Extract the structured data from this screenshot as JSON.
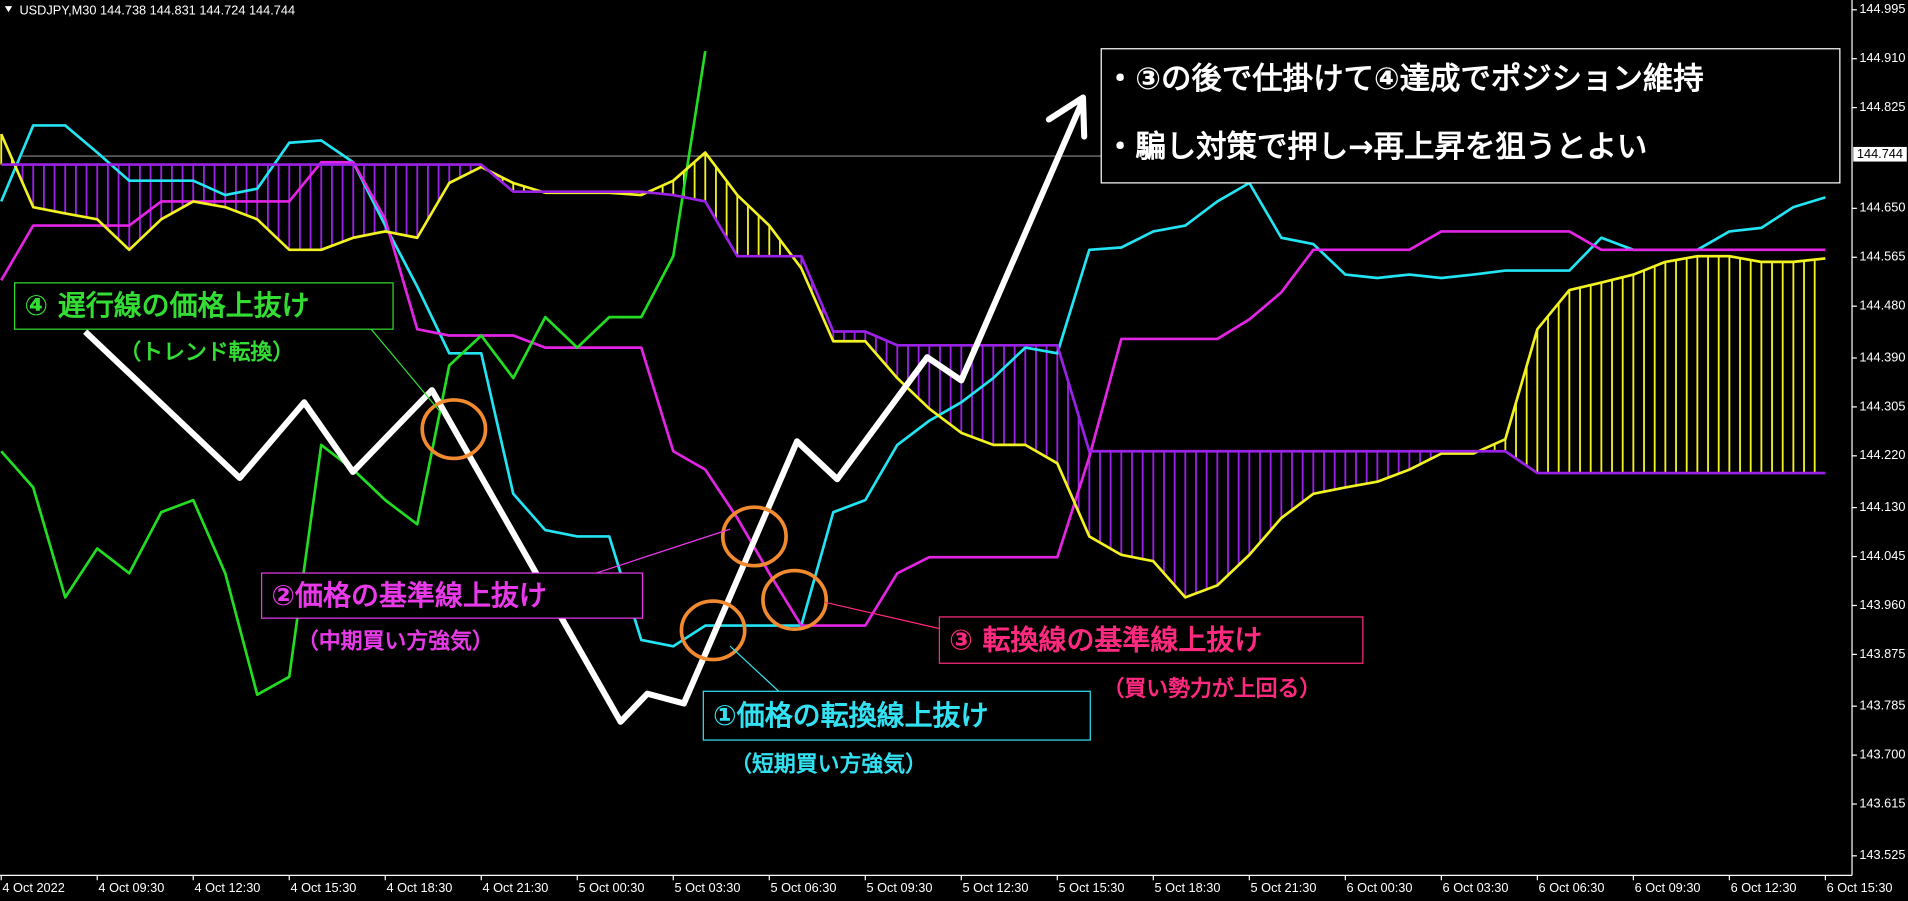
{
  "chart_data": {
    "type": "line",
    "title": "USDJPY,M30  144.738 144.831 144.724 144.744",
    "current_price": {
      "value": 144.744,
      "label": "144.744"
    },
    "categories": [
      "4 Oct 2022",
      null,
      null,
      "4 Oct 09:30",
      null,
      null,
      "4 Oct 12:30",
      null,
      null,
      "4 Oct 15:30",
      null,
      null,
      "4 Oct 18:30",
      null,
      null,
      "4 Oct 21:30",
      null,
      null,
      "5 Oct 00:30",
      null,
      null,
      "5 Oct 03:30",
      null,
      null,
      "5 Oct 06:30",
      null,
      null,
      "5 Oct 09:30",
      null,
      null,
      "5 Oct 12:30",
      null,
      null,
      "5 Oct 15:30",
      null,
      null,
      "5 Oct 18:30",
      null,
      null,
      "5 Oct 21:30",
      null,
      null,
      "6 Oct 00:30",
      null,
      null,
      "6 Oct 03:30",
      null,
      null,
      "6 Oct 06:30",
      null,
      null,
      "6 Oct 09:30",
      null,
      null,
      "6 Oct 12:30",
      null,
      null,
      "6 Oct 15:30"
    ],
    "series": [
      {
        "color": "#22e4f2",
        "values": [
          144.662,
          144.794,
          144.794,
          144.747,
          144.698,
          144.698,
          144.698,
          144.673,
          144.684,
          144.764,
          144.768,
          144.73,
          144.62,
          144.514,
          144.398,
          144.398,
          144.154,
          144.091,
          144.08,
          144.08,
          143.9,
          143.889,
          143.925,
          143.925,
          143.925,
          143.925,
          144.122,
          144.143,
          144.239,
          144.281,
          144.313,
          144.355,
          144.408,
          144.398,
          144.578,
          144.582,
          144.61,
          144.62,
          144.662,
          144.694,
          144.599,
          144.588,
          144.535,
          144.529,
          144.535,
          144.529,
          144.535,
          144.542,
          144.542,
          144.542,
          144.599,
          144.578,
          144.578,
          144.578,
          144.61,
          144.616,
          144.652,
          144.669
        ]
      },
      {
        "color": "#e424e4",
        "values": [
          144.525,
          144.62,
          144.62,
          144.62,
          144.62,
          144.662,
          144.662,
          144.662,
          144.662,
          144.662,
          144.73,
          144.73,
          144.631,
          144.44,
          144.429,
          144.429,
          144.429,
          144.408,
          144.408,
          144.408,
          144.408,
          144.228,
          144.196,
          144.112,
          144.016,
          143.925,
          143.925,
          143.925,
          144.016,
          144.044,
          144.044,
          144.044,
          144.044,
          144.044,
          144.218,
          144.423,
          144.423,
          144.423,
          144.423,
          144.457,
          144.504,
          144.578,
          144.578,
          144.578,
          144.578,
          144.61,
          144.61,
          144.61,
          144.61,
          144.61,
          144.578,
          144.578,
          144.578,
          144.578,
          144.578,
          144.578,
          144.578,
          144.578
        ]
      },
      {
        "color": "#22dd22",
        "values": [
          144.228,
          144.165,
          143.974,
          144.059,
          144.016,
          144.122,
          144.143,
          144.016,
          143.805,
          143.836,
          144.239,
          144.196,
          144.143,
          144.101,
          144.377,
          144.429,
          144.355,
          144.461,
          144.408,
          144.461,
          144.461,
          144.567,
          144.923,
          null,
          null,
          null,
          null,
          null,
          null,
          null,
          null,
          null,
          null,
          null,
          null,
          null,
          null,
          null,
          null,
          null,
          null,
          null,
          null,
          null,
          null,
          null,
          null,
          null,
          null,
          null,
          null,
          null,
          null,
          null,
          null,
          null,
          null,
          null
        ]
      },
      {
        "color": "#f2f222",
        "values": [
          144.779,
          144.652,
          144.641,
          144.631,
          144.578,
          144.631,
          144.662,
          144.652,
          144.631,
          144.578,
          144.578,
          144.599,
          144.61,
          144.599,
          144.694,
          144.722,
          144.694,
          144.677,
          144.677,
          144.677,
          144.673,
          144.698,
          144.747,
          144.673,
          144.62,
          144.546,
          144.419,
          144.419,
          144.355,
          144.302,
          144.26,
          144.239,
          144.239,
          144.207,
          144.08,
          144.048,
          144.037,
          143.974,
          143.995,
          144.048,
          144.112,
          144.154,
          144.165,
          144.175,
          144.196,
          144.224,
          144.224,
          144.249,
          144.44,
          144.508,
          144.521,
          144.535,
          144.557,
          144.567,
          144.567,
          144.557,
          144.557,
          144.563
        ]
      },
      {
        "color": "#9a22e6",
        "values": [
          144.726,
          144.726,
          144.726,
          144.726,
          144.726,
          144.726,
          144.726,
          144.726,
          144.726,
          144.726,
          144.726,
          144.726,
          144.726,
          144.726,
          144.726,
          144.726,
          144.679,
          144.679,
          144.679,
          144.679,
          144.679,
          144.673,
          144.662,
          144.567,
          144.567,
          144.567,
          144.436,
          144.436,
          144.412,
          144.412,
          144.412,
          144.412,
          144.412,
          144.412,
          144.228,
          144.228,
          144.228,
          144.228,
          144.228,
          144.228,
          144.228,
          144.228,
          144.228,
          144.228,
          144.228,
          144.228,
          144.228,
          144.228,
          144.19,
          144.19,
          144.19,
          144.19,
          144.19,
          144.19,
          144.19,
          144.19,
          144.19,
          144.19
        ]
      }
    ],
    "cloud": {
      "upper_color": "#f2f222",
      "lower_color": "#9a22e6"
    },
    "ylim": [
      143.491,
      145.012
    ],
    "yticks": [
      144.995,
      {
        "value": 144.91,
        "label": "144.910"
      },
      144.825,
      {
        "value": 144.65,
        "label": "144.650"
      },
      144.565,
      {
        "value": 144.48,
        "label": "144.480"
      },
      {
        "value": 144.39,
        "label": "144.390"
      },
      144.305,
      {
        "value": 144.22,
        "label": "144.220"
      },
      {
        "value": 144.13,
        "label": "144.130"
      },
      144.045,
      {
        "value": 143.96,
        "label": "143.960"
      },
      143.875,
      143.785,
      {
        "value": 143.7,
        "label": "143.700"
      },
      143.615,
      143.525
    ],
    "annotations": [
      {
        "text": "④ 遅行線の価格上抜け",
        "note": "（トレンド転換）",
        "color": "#33dd33"
      },
      {
        "text": "②価格の基準線上抜け",
        "note": "（中期買い方強気）",
        "color": "#e83ae8"
      },
      {
        "text": "③ 転換線の基準線上抜け",
        "note": "（買い勢力が上回る）",
        "color": "#ff2a7f"
      },
      {
        "text": "①価格の転換線上抜け",
        "note": "（短期買い方強気）",
        "color": "#33e2f2"
      }
    ],
    "notes_box": [
      "・③の後で仕掛けて④達成でポジション維持",
      "・騙し対策で押し→再上昇を狙うとよい"
    ]
  }
}
